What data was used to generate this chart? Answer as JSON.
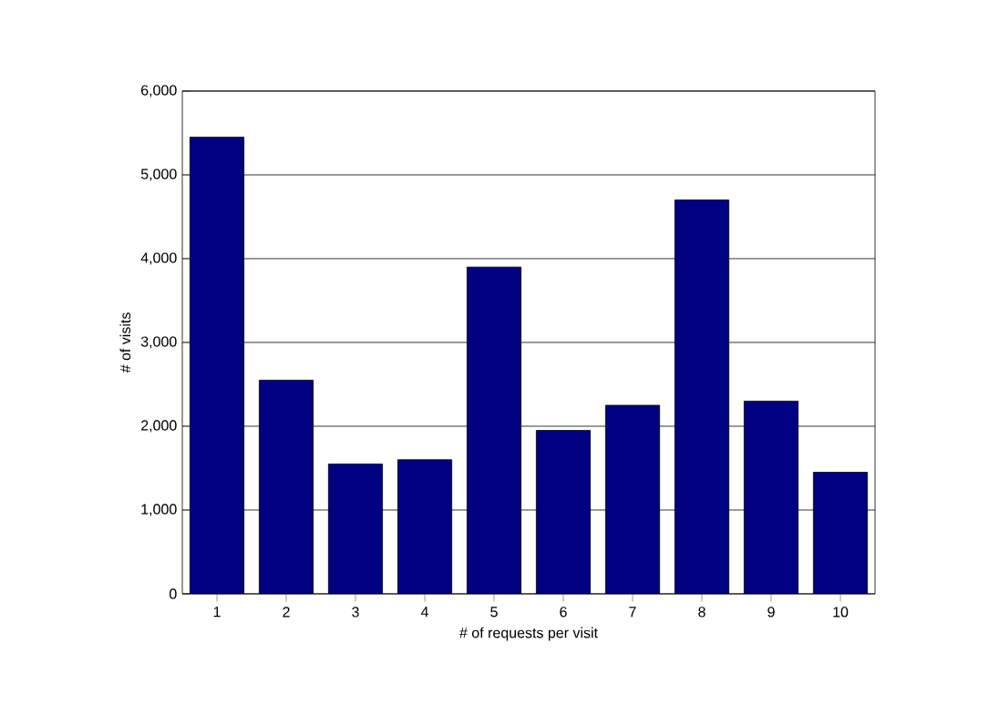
{
  "chart_data": {
    "type": "bar",
    "xlabel": "# of requests per visit",
    "ylabel": "# of visits",
    "categories": [
      "1",
      "2",
      "3",
      "4",
      "5",
      "6",
      "7",
      "8",
      "9",
      "10"
    ],
    "values": [
      5450,
      2550,
      1550,
      1600,
      3900,
      1950,
      2250,
      4700,
      2300,
      1450
    ],
    "color": "#000080",
    "ylim": [
      0,
      6000
    ],
    "yticks": [
      {
        "value": 0,
        "label": "0"
      },
      {
        "value": 1000,
        "label": "1,000"
      },
      {
        "value": 2000,
        "label": "2,000"
      },
      {
        "value": 3000,
        "label": "3,000"
      },
      {
        "value": 4000,
        "label": "4,000"
      },
      {
        "value": 5000,
        "label": "5,000"
      },
      {
        "value": 6000,
        "label": "6,000"
      }
    ],
    "grid": "y"
  }
}
